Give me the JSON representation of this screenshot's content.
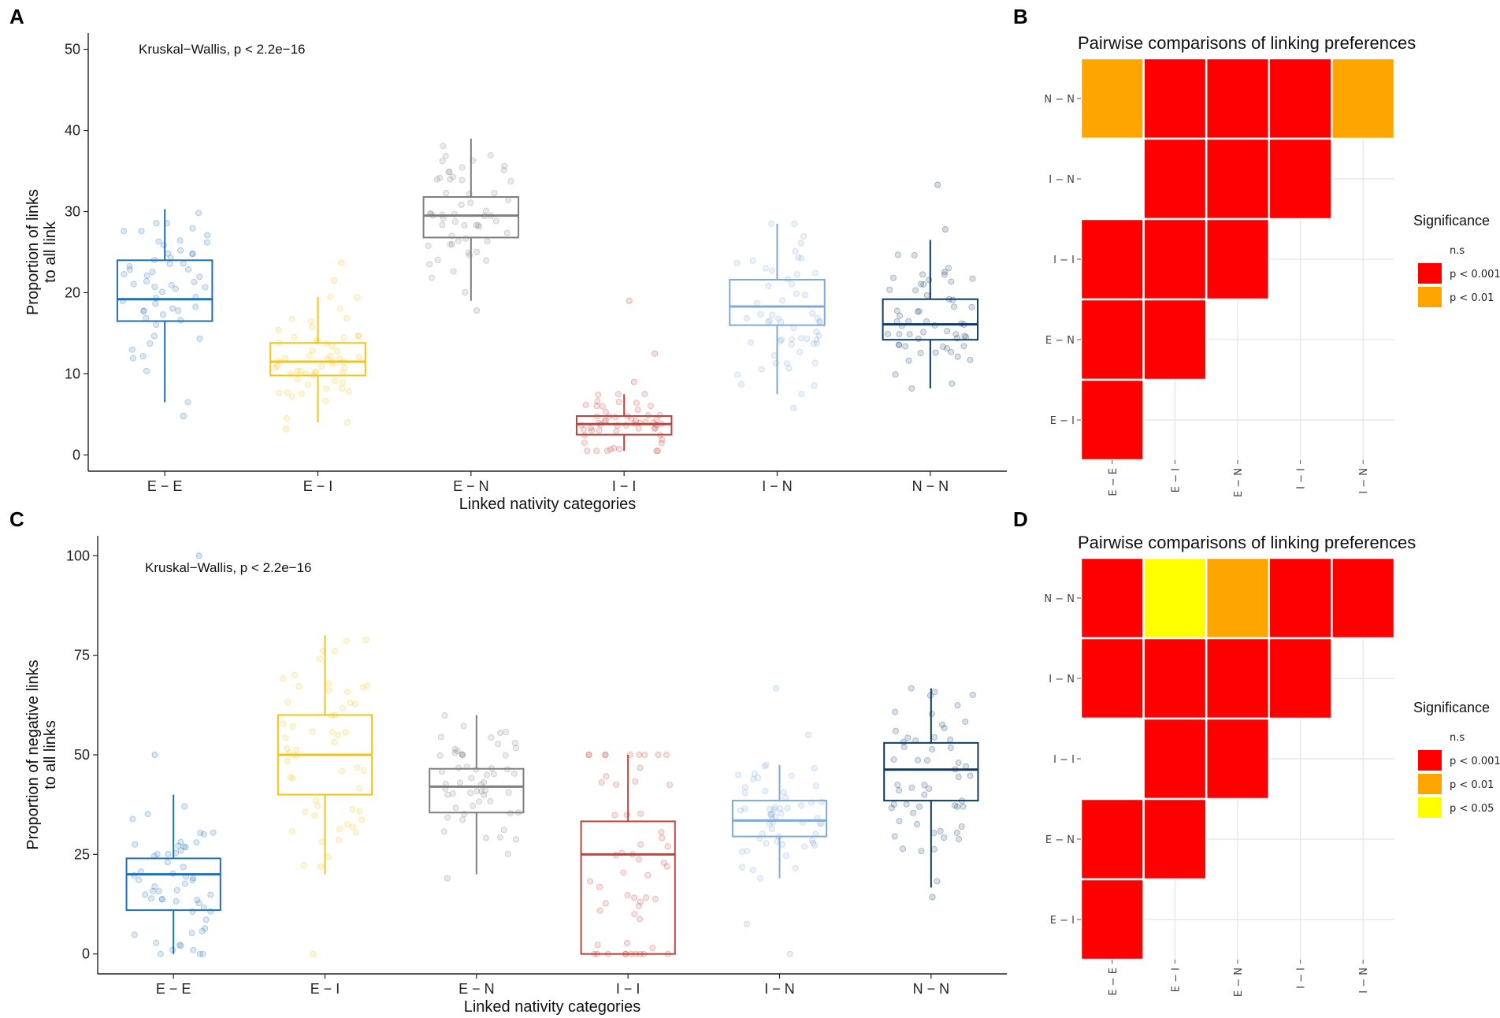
{
  "chart_data": [
    {
      "panel": "A",
      "type": "box",
      "annotation": "Kruskal−Wallis, p < 2.2e−16",
      "xlabel": "Linked nativity categories",
      "ylabel_lines": [
        "Proportion of links",
        "to all link"
      ],
      "ylim": [
        -2,
        52
      ],
      "yticks": [
        0,
        10,
        20,
        30,
        40,
        50
      ],
      "categories": [
        "E − E",
        "E − I",
        "E − N",
        "I − I",
        "I − N",
        "N − N"
      ],
      "colors": [
        "#1f6fb4",
        "#f0c419",
        "#7f7f7f",
        "#c0443c",
        "#7fa9d8",
        "#0d3a63"
      ],
      "boxes": [
        {
          "whisker_low": 6.5,
          "q1": 16.5,
          "median": 19.2,
          "q3": 24.0,
          "whisker_high": 30.3,
          "outliers": [
            4.8
          ]
        },
        {
          "whisker_low": 4.0,
          "q1": 9.8,
          "median": 11.5,
          "q3": 13.8,
          "whisker_high": 19.5,
          "outliers": [
            23.7,
            21.5,
            3.2
          ]
        },
        {
          "whisker_low": 19.0,
          "q1": 26.8,
          "median": 29.5,
          "q3": 31.8,
          "whisker_high": 39.0,
          "outliers": [
            17.8
          ]
        },
        {
          "whisker_low": 0.5,
          "q1": 2.5,
          "median": 3.8,
          "q3": 4.8,
          "whisker_high": 7.5,
          "outliers": [
            9.0,
            12.5,
            19.0
          ]
        },
        {
          "whisker_low": 7.5,
          "q1": 16.0,
          "median": 18.3,
          "q3": 21.6,
          "whisker_high": 28.5,
          "outliers": [
            5.8
          ]
        },
        {
          "whisker_low": 8.2,
          "q1": 14.2,
          "median": 16.1,
          "q3": 19.2,
          "whisker_high": 26.5,
          "outliers": [
            33.3,
            27.8
          ]
        }
      ]
    },
    {
      "panel": "B",
      "type": "heatmap",
      "title": "Pairwise comparisons of linking preferences",
      "x_categories": [
        "E − E",
        "E − I",
        "E − N",
        "I − I",
        "I − N"
      ],
      "y_categories": [
        "N − N",
        "I − N",
        "I − I",
        "E − N",
        "E − I"
      ],
      "cells": [
        [
          "p < 0.01",
          "p < 0.001",
          "p < 0.001",
          "p < 0.001",
          "p < 0.01"
        ],
        [
          "n.s",
          "p < 0.001",
          "p < 0.001",
          "p < 0.001",
          null
        ],
        [
          "p < 0.001",
          "p < 0.001",
          "p < 0.001",
          null,
          null
        ],
        [
          "p < 0.001",
          "p < 0.001",
          null,
          null,
          null
        ],
        [
          "p < 0.001",
          null,
          null,
          null,
          null
        ]
      ],
      "legend_title": "Significance",
      "legend": [
        {
          "label": "n.s",
          "color": "#ffffff"
        },
        {
          "label": "p < 0.001",
          "color": "#ff0000"
        },
        {
          "label": "p < 0.01",
          "color": "#ffa500"
        }
      ]
    },
    {
      "panel": "C",
      "type": "box",
      "annotation": "Kruskal−Wallis, p < 2.2e−16",
      "xlabel": "Linked nativity categories",
      "ylabel_lines": [
        "Proportion of negative links",
        "to all links"
      ],
      "ylim": [
        -5,
        105
      ],
      "yticks": [
        0,
        25,
        50,
        75,
        100
      ],
      "categories": [
        "E − E",
        "E − I",
        "E − N",
        "I − I",
        "I − N",
        "N − N"
      ],
      "colors": [
        "#1f6fb4",
        "#f0c419",
        "#7f7f7f",
        "#c0443c",
        "#7fa9d8",
        "#0d3a63"
      ],
      "boxes": [
        {
          "whisker_low": 0,
          "q1": 11.0,
          "median": 20.0,
          "q3": 24.0,
          "whisker_high": 40.0,
          "outliers": [
            50.0,
            100.0
          ]
        },
        {
          "whisker_low": 20.0,
          "q1": 40.0,
          "median": 50.0,
          "q3": 60.0,
          "whisker_high": 80.0,
          "outliers": [
            0.0
          ]
        },
        {
          "whisker_low": 20.0,
          "q1": 35.5,
          "median": 42.0,
          "q3": 46.5,
          "whisker_high": 60.0,
          "outliers": [
            19.0
          ]
        },
        {
          "whisker_low": 0,
          "q1": 0.0,
          "median": 25.0,
          "q3": 33.3,
          "whisker_high": 50.0,
          "outliers": []
        },
        {
          "whisker_low": 19.0,
          "q1": 29.5,
          "median": 33.5,
          "q3": 38.5,
          "whisker_high": 47.5,
          "outliers": [
            66.7,
            55.0,
            7.5,
            0.0
          ]
        },
        {
          "whisker_low": 16.7,
          "q1": 38.5,
          "median": 46.3,
          "q3": 53.0,
          "whisker_high": 66.7,
          "outliers": [
            14.3
          ]
        }
      ]
    },
    {
      "panel": "D",
      "type": "heatmap",
      "title": "Pairwise comparisons of linking preferences",
      "x_categories": [
        "E − E",
        "E − I",
        "E − N",
        "I − I",
        "I − N"
      ],
      "y_categories": [
        "N − N",
        "I − N",
        "I − I",
        "E − N",
        "E − I"
      ],
      "cells": [
        [
          "p < 0.001",
          "p < 0.05",
          "p < 0.01",
          "p < 0.001",
          "p < 0.001"
        ],
        [
          "p < 0.001",
          "p < 0.001",
          "p < 0.001",
          "p < 0.001",
          null
        ],
        [
          "n.s",
          "p < 0.001",
          "p < 0.001",
          null,
          null
        ],
        [
          "p < 0.001",
          "p < 0.001",
          null,
          null,
          null
        ],
        [
          "p < 0.001",
          null,
          null,
          null,
          null
        ]
      ],
      "legend_title": "Significance",
      "legend": [
        {
          "label": "n.s",
          "color": "#ffffff"
        },
        {
          "label": "p < 0.001",
          "color": "#ff0000"
        },
        {
          "label": "p < 0.01",
          "color": "#ffa500"
        },
        {
          "label": "p < 0.05",
          "color": "#ffff00"
        }
      ]
    }
  ]
}
